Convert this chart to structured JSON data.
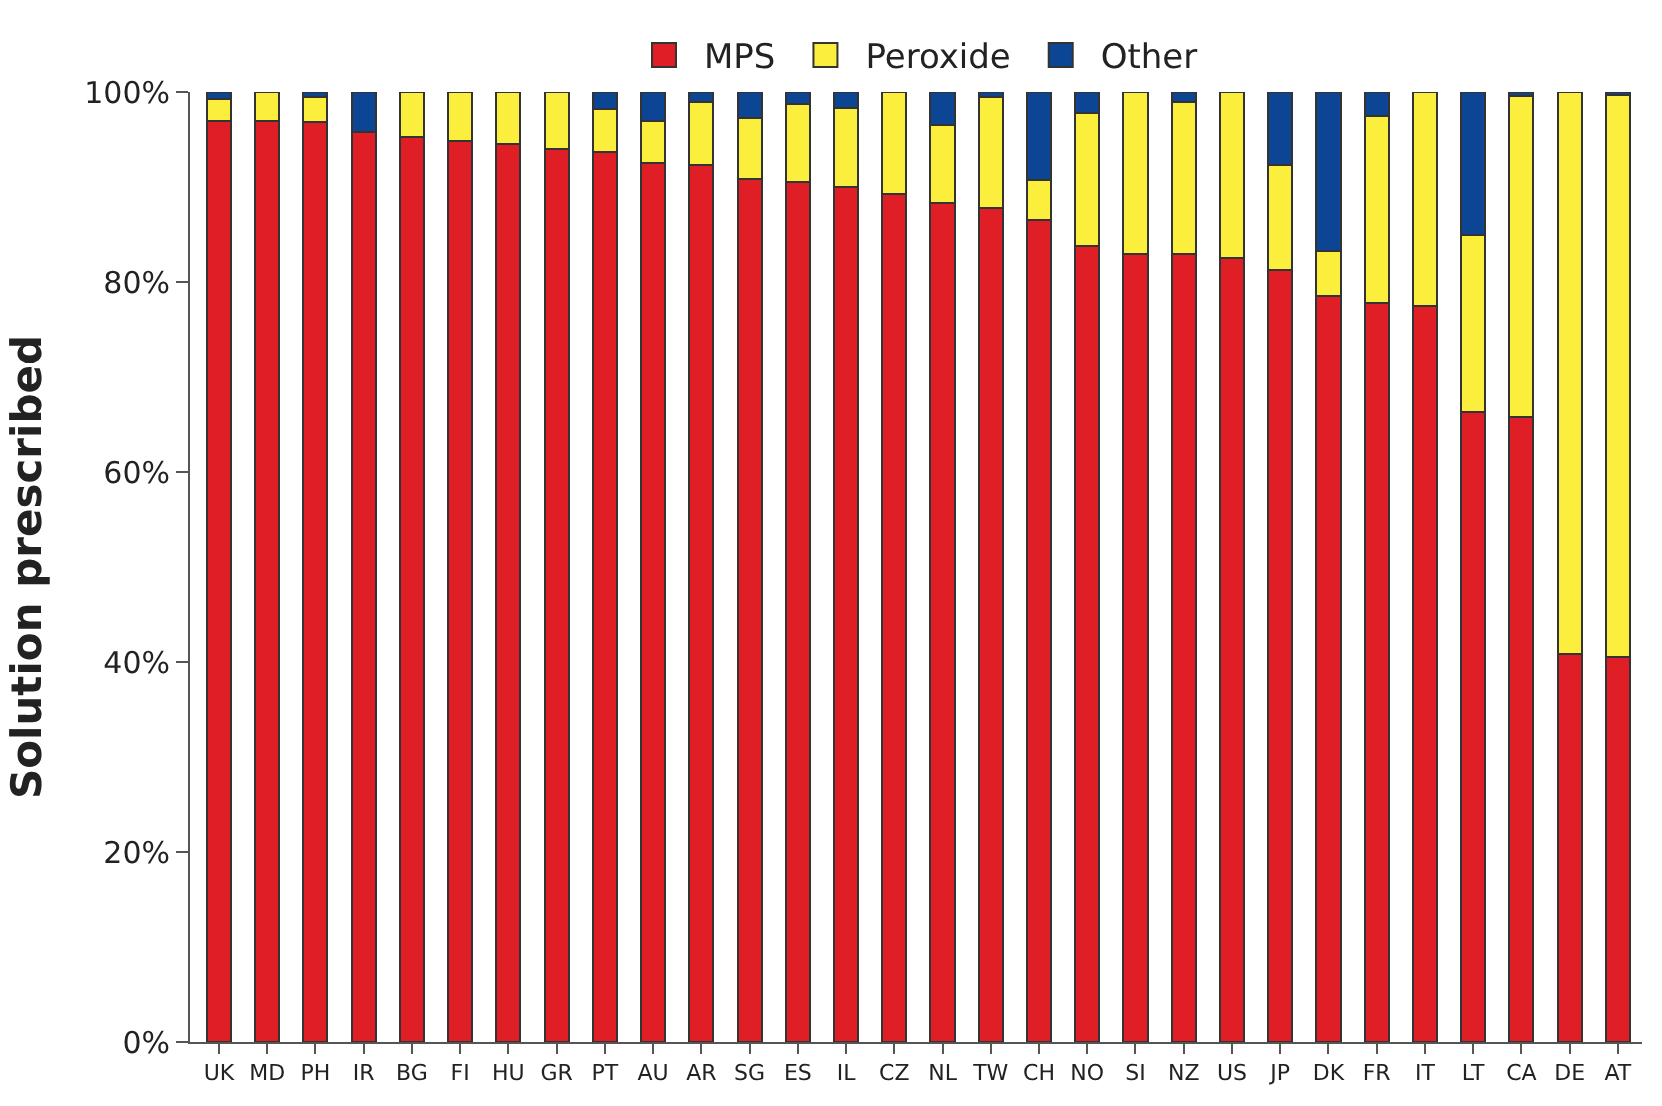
{
  "chart_data": {
    "type": "bar",
    "stacked": true,
    "ylabel": "Solution prescribed",
    "categories": [
      "UK",
      "MD",
      "PH",
      "IR",
      "BG",
      "FI",
      "HU",
      "GR",
      "PT",
      "AU",
      "AR",
      "SG",
      "ES",
      "IL",
      "CZ",
      "NL",
      "TW",
      "CH",
      "NO",
      "SI",
      "NZ",
      "US",
      "JP",
      "DK",
      "FR",
      "IT",
      "LT",
      "CA",
      "DE",
      "AT"
    ],
    "series": [
      {
        "name": "MPS",
        "color": "#e01e26",
        "values": [
          97,
          97,
          96.8,
          95.8,
          95.3,
          94.8,
          94.5,
          94,
          93.7,
          92.5,
          92.3,
          90.8,
          90.5,
          90,
          89.3,
          88.3,
          87.8,
          86.5,
          83.8,
          83,
          83,
          82.5,
          81.3,
          78.5,
          77.8,
          77.5,
          66.3,
          65.8,
          40.8,
          40.5
        ]
      },
      {
        "name": "Peroxide",
        "color": "#fcee3c",
        "values": [
          2.3,
          3,
          2.7,
          null,
          4.7,
          5.2,
          5.5,
          6,
          4.5,
          4.5,
          6.7,
          6.5,
          8.2,
          8.3,
          10.7,
          8.2,
          11.7,
          4.2,
          14,
          17,
          16,
          17.5,
          11,
          4.8,
          19.7,
          22.5,
          18.7,
          33.8,
          59.2,
          59.2
        ]
      },
      {
        "name": "Other",
        "color": "#0d4595",
        "values": [
          0.7,
          null,
          0.5,
          4.2,
          null,
          null,
          null,
          null,
          1.8,
          3,
          1,
          2.7,
          1.3,
          1.7,
          null,
          3.5,
          0.5,
          9.3,
          2.2,
          null,
          1,
          null,
          7.7,
          16.7,
          2.5,
          null,
          15,
          0.4,
          null,
          0.3
        ]
      }
    ],
    "ylim": [
      0,
      100
    ],
    "yticks": [
      {
        "value": 0,
        "label": "0%"
      },
      {
        "value": 20,
        "label": "20%"
      },
      {
        "value": 40,
        "label": "40%"
      },
      {
        "value": 60,
        "label": "60%"
      },
      {
        "value": 80,
        "label": "80%"
      },
      {
        "value": 100,
        "label": "100%"
      }
    ],
    "legend": "top"
  }
}
